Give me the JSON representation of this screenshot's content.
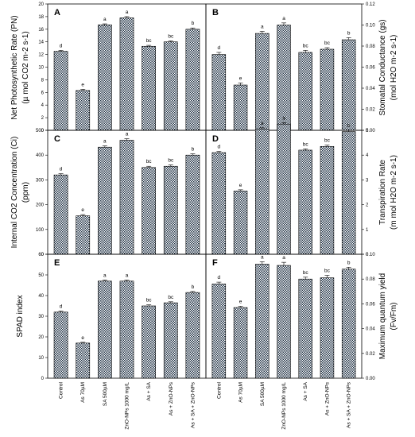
{
  "categories": [
    "Control",
    "As 70µM",
    "SA 500µM",
    "ZnO-NPs 1000 mg/L",
    "As + SA",
    "As + ZnO-NPs",
    "As + SA + ZnO-NPs"
  ],
  "ylabels": {
    "A": [
      "Net Photosynthetic Rate (PN)",
      "(µ mol CO2 m-2 s-1)"
    ],
    "B": [
      "Stomatal Conductance (gs)",
      "(mol H2O m-2 s-1)"
    ],
    "C": [
      "Internal CO2 Concentration (Ci)",
      "(ppm)"
    ],
    "D": [
      "Transpiration Rate",
      "(m mol H2O m-2 s-1)"
    ],
    "E": [
      "SPAD index"
    ],
    "F": [
      "Maximum quantum yield",
      "(Fv/Fm)"
    ]
  },
  "chart_data": [
    {
      "panel": "A",
      "type": "bar",
      "ylim": [
        0,
        20
      ],
      "yticks": [
        0,
        2,
        4,
        6,
        8,
        10,
        12,
        14,
        16,
        18,
        20
      ],
      "values": [
        12.5,
        6.3,
        16.7,
        17.8,
        13.3,
        14.0,
        16.0
      ],
      "errors": [
        0.15,
        0.2,
        0.15,
        0.2,
        0.15,
        0.15,
        0.2
      ],
      "letters": [
        "d",
        "e",
        "a",
        "a",
        "bc",
        "bc",
        "b"
      ]
    },
    {
      "panel": "B",
      "type": "bar",
      "ylim": [
        0,
        0.12
      ],
      "yticks": [
        0.0,
        0.02,
        0.04,
        0.06,
        0.08,
        0.1,
        0.12
      ],
      "values": [
        0.072,
        0.043,
        0.092,
        0.1,
        0.074,
        0.077,
        0.086
      ],
      "errors": [
        0.002,
        0.002,
        0.002,
        0.002,
        0.002,
        0.0015,
        0.002
      ],
      "letters": [
        "d",
        "e",
        "a",
        "a",
        "bc",
        "bc",
        "b"
      ]
    },
    {
      "panel": "C",
      "type": "bar",
      "ylim": [
        0,
        500
      ],
      "yticks": [
        0,
        100,
        200,
        300,
        400,
        500
      ],
      "values": [
        320,
        155,
        432,
        460,
        350,
        355,
        400
      ],
      "errors": [
        5,
        5,
        5,
        6,
        5,
        5,
        5
      ],
      "letters": [
        "d",
        "e",
        "a",
        "a",
        "bc",
        "bc",
        "b"
      ]
    },
    {
      "panel": "D",
      "type": "bar",
      "ylim": [
        0,
        5
      ],
      "yticks": [
        0,
        1,
        2,
        3,
        4,
        5
      ],
      "values": [
        4.1,
        2.55,
        5.05,
        5.25,
        4.2,
        4.35,
        4.95
      ],
      "errors": [
        0.05,
        0.05,
        0.05,
        0.06,
        0.05,
        0.05,
        0.05
      ],
      "letters": [
        "d",
        "e",
        "a",
        "a",
        "bc",
        "bc",
        "b"
      ]
    },
    {
      "panel": "E",
      "type": "bar",
      "ylim": [
        0,
        60
      ],
      "yticks": [
        0,
        10,
        20,
        30,
        40,
        50,
        60
      ],
      "values": [
        32,
        17,
        47,
        47,
        35,
        36.5,
        41.5
      ],
      "errors": [
        0.5,
        0.4,
        0.5,
        0.5,
        0.5,
        0.5,
        0.5
      ],
      "letters": [
        "d",
        "e",
        "a",
        "a",
        "bc",
        "bc",
        "b"
      ]
    },
    {
      "panel": "F",
      "type": "bar",
      "ylim": [
        0,
        0.1
      ],
      "yticks": [
        0.0,
        0.02,
        0.04,
        0.06,
        0.08,
        0.1
      ],
      "values": [
        0.076,
        0.057,
        0.092,
        0.091,
        0.08,
        0.081,
        0.088
      ],
      "errors": [
        0.0015,
        0.001,
        0.002,
        0.0025,
        0.0015,
        0.002,
        0.0015
      ],
      "letters": [
        "d",
        "e",
        "a",
        "a",
        "bc",
        "bc",
        "b"
      ]
    }
  ]
}
